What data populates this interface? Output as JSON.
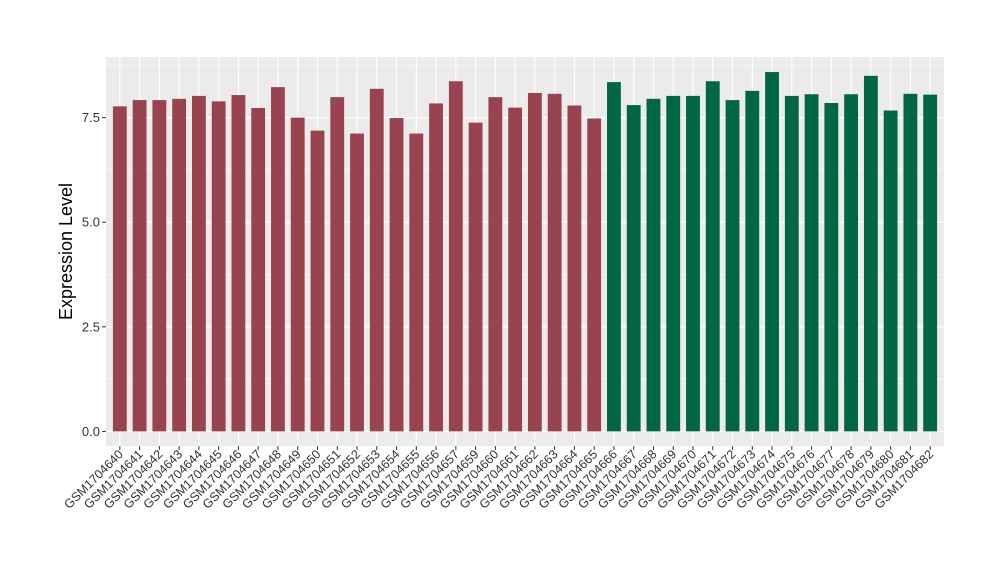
{
  "chart_data": {
    "type": "bar",
    "title": "",
    "xlabel": "",
    "ylabel": "Expression Level",
    "ylim": [
      -0.35,
      8.95
    ],
    "yticks": [
      0.0,
      2.5,
      5.0,
      7.5
    ],
    "ytick_labels": [
      "0.0",
      "2.5",
      "5.0",
      "7.5"
    ],
    "grid": true,
    "legend": "none",
    "categories": [
      "GSM1704640",
      "GSM1704641",
      "GSM1704642",
      "GSM1704643",
      "GSM1704644",
      "GSM1704645",
      "GSM1704646",
      "GSM1704647",
      "GSM1704648",
      "GSM1704649",
      "GSM1704650",
      "GSM1704651",
      "GSM1704652",
      "GSM1704653",
      "GSM1704654",
      "GSM1704655",
      "GSM1704656",
      "GSM1704657",
      "GSM1704659",
      "GSM1704660",
      "GSM1704661",
      "GSM1704662",
      "GSM1704663",
      "GSM1704664",
      "GSM1704665",
      "GSM1704666",
      "GSM1704667",
      "GSM1704668",
      "GSM1704669",
      "GSM1704670",
      "GSM1704671",
      "GSM1704672",
      "GSM1704673",
      "GSM1704674",
      "GSM1704675",
      "GSM1704676",
      "GSM1704677",
      "GSM1704678",
      "GSM1704679",
      "GSM1704680",
      "GSM1704681",
      "GSM1704682"
    ],
    "values": [
      7.77,
      7.92,
      7.92,
      7.95,
      8.02,
      7.89,
      8.04,
      7.73,
      8.23,
      7.5,
      7.19,
      7.99,
      7.12,
      8.19,
      7.49,
      7.12,
      7.84,
      8.37,
      7.38,
      7.99,
      7.74,
      8.09,
      8.07,
      7.79,
      7.48,
      8.35,
      7.8,
      7.95,
      8.02,
      8.02,
      8.37,
      7.92,
      8.14,
      8.59,
      8.02,
      8.06,
      7.85,
      8.06,
      8.5,
      7.67,
      8.07,
      8.05
    ],
    "group_sizes": [
      25,
      17
    ],
    "colors": {
      "group1": "#9a4350",
      "group2": "#006643",
      "panel": "#ebebeb",
      "grid": "#ffffff",
      "axis_text": "#333333"
    }
  }
}
